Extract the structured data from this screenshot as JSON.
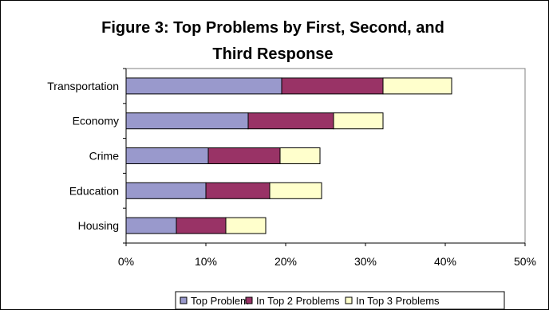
{
  "chart_data": {
    "type": "bar",
    "orientation": "horizontal",
    "stacked": true,
    "title_lines": [
      "Figure 3: Top Problems by First, Second, and",
      "Third Response"
    ],
    "categories": [
      "Transportation",
      "Economy",
      "Crime",
      "Education",
      "Housing"
    ],
    "series": [
      {
        "name": "Top Problem",
        "color": "#9999cc",
        "values": [
          19.5,
          15.3,
          10.3,
          10.0,
          6.3
        ]
      },
      {
        "name": "In Top 2 Problems",
        "color": "#993366",
        "values": [
          12.7,
          10.7,
          9.0,
          8.0,
          6.2
        ]
      },
      {
        "name": "In Top 3 Problems",
        "color": "#ffffcc",
        "values": [
          8.6,
          6.2,
          5.0,
          6.5,
          5.0
        ]
      }
    ],
    "xlim": [
      0,
      50
    ],
    "xticks": [
      "0%",
      "10%",
      "20%",
      "30%",
      "40%",
      "50%"
    ],
    "xtick_values": [
      0,
      10,
      20,
      30,
      40,
      50
    ],
    "grid": false,
    "legend_position": "bottom",
    "xlabel": "",
    "ylabel": ""
  }
}
